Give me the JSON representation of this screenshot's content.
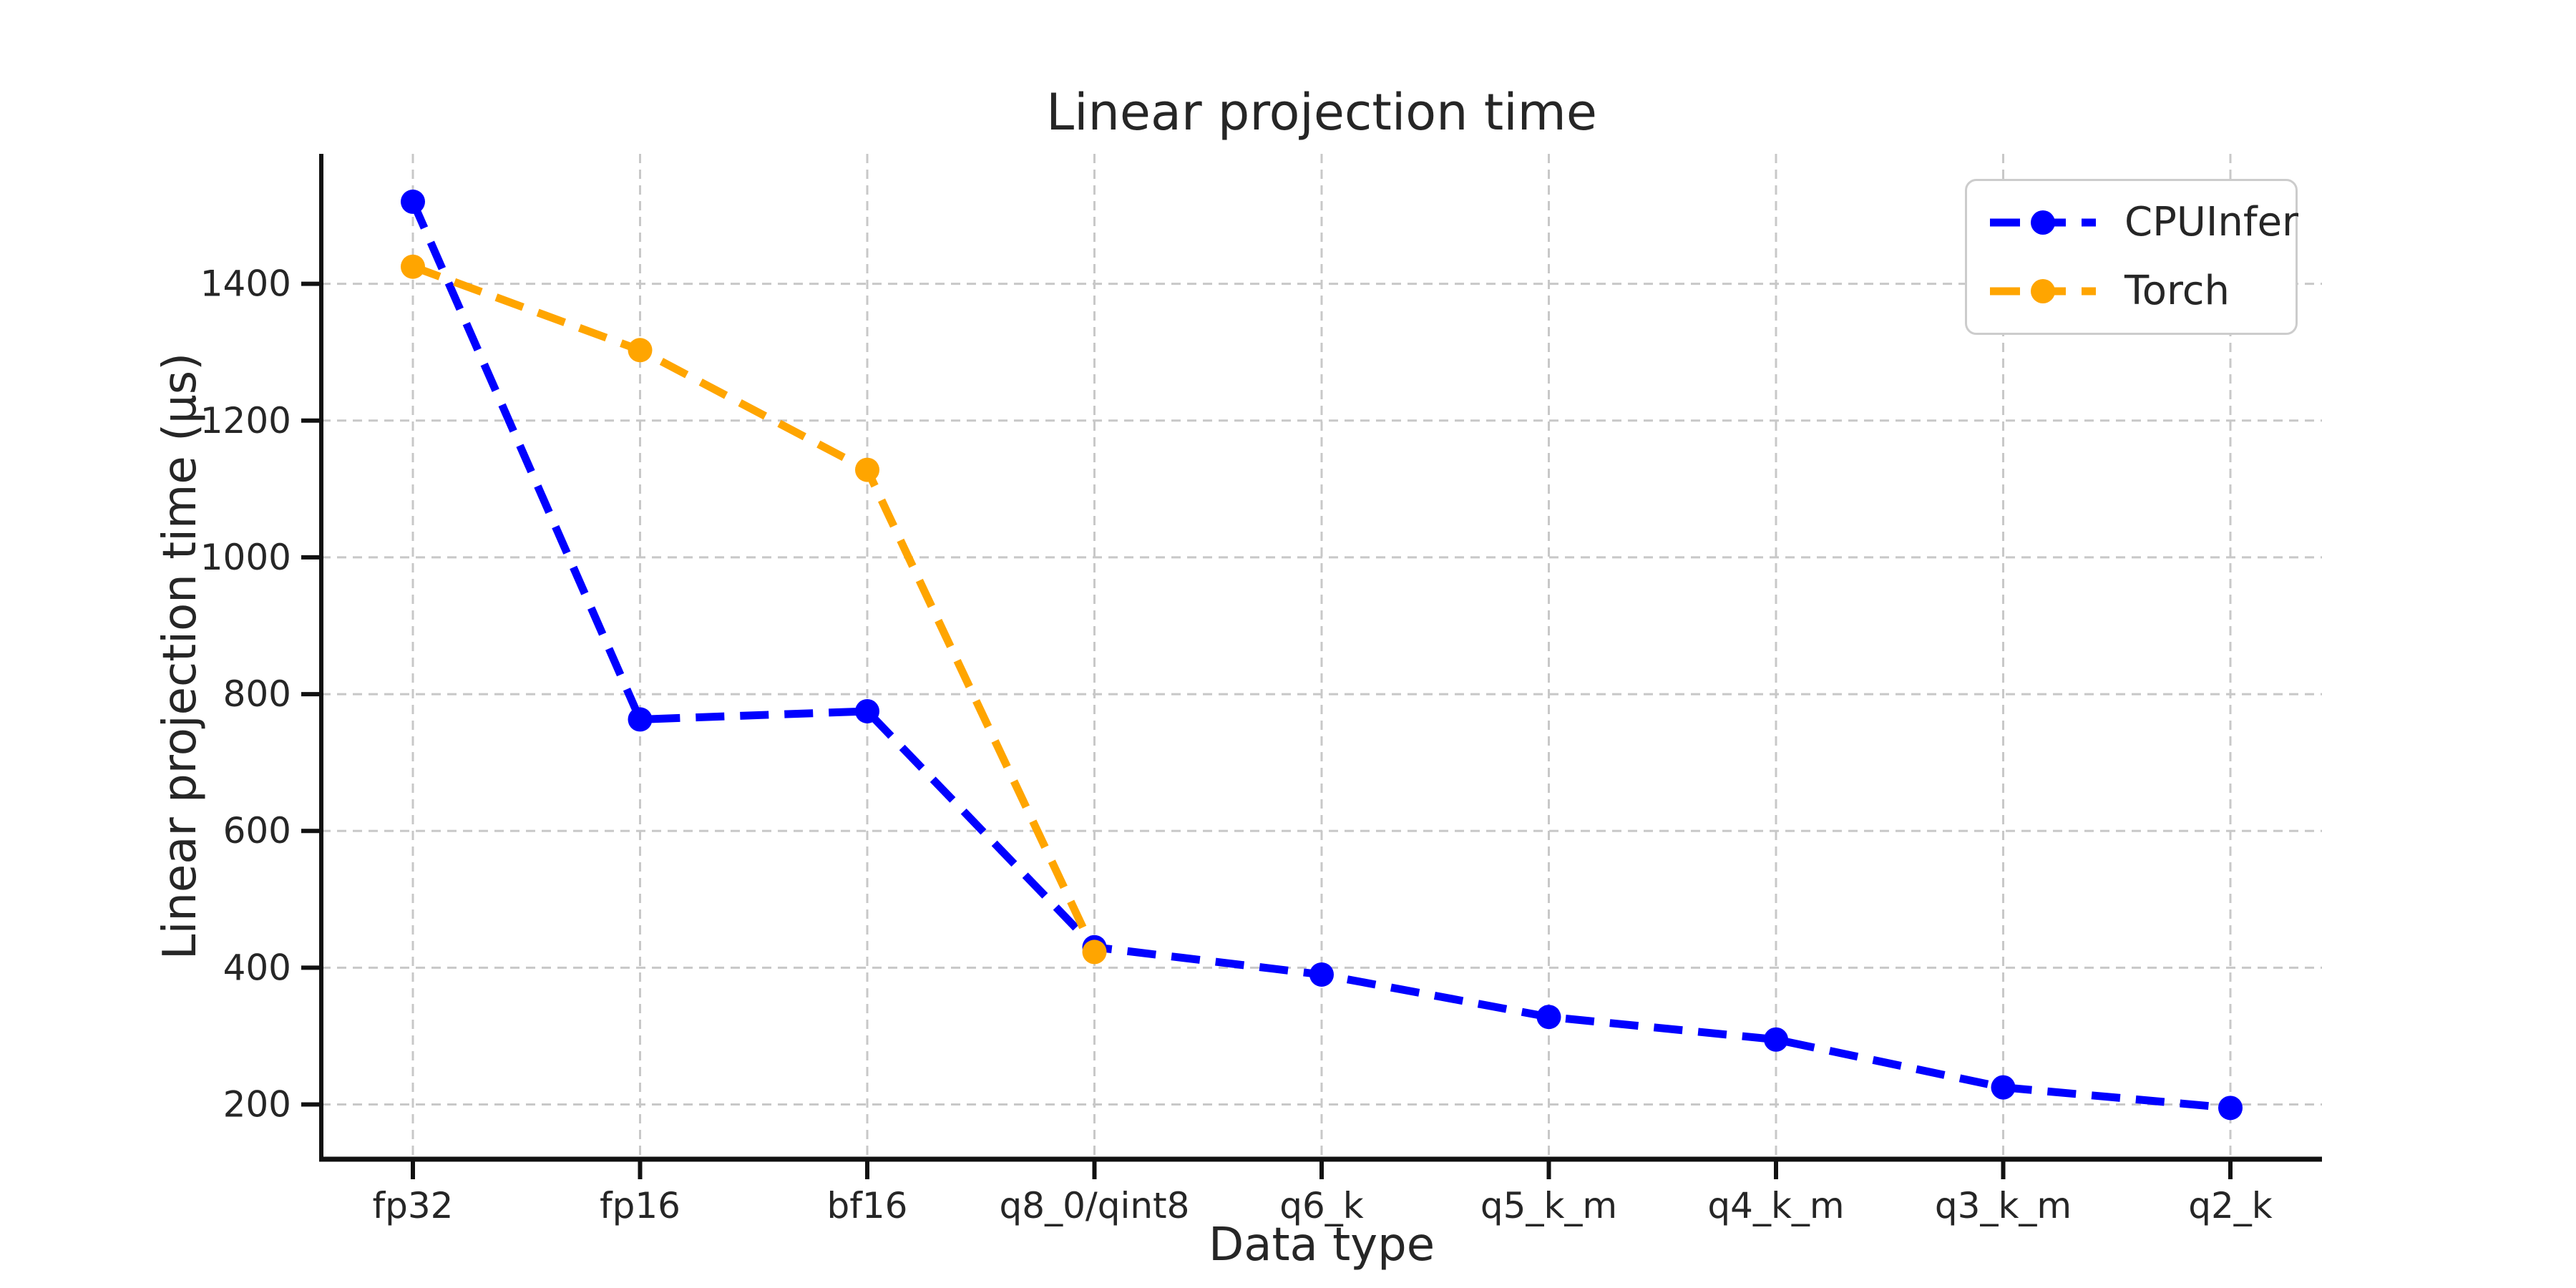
{
  "chart_data": {
    "type": "line",
    "title": "Linear projection time",
    "xlabel": "Data type",
    "ylabel": "Linear projection time (μs)",
    "categories": [
      "fp32",
      "fp16",
      "bf16",
      "q8_0/qint8",
      "q6_k",
      "q5_k_m",
      "q4_k_m",
      "q3_k_m",
      "q2_k"
    ],
    "series": [
      {
        "name": "CPUInfer",
        "color": "#0000ff",
        "values": [
          1520,
          763,
          775,
          430,
          390,
          328,
          295,
          225,
          195
        ]
      },
      {
        "name": "Torch",
        "color": "#ffa500",
        "values": [
          1425,
          1303,
          1128,
          423
        ]
      }
    ],
    "yticks": [
      200,
      400,
      600,
      800,
      1000,
      1200,
      1400
    ],
    "ylim": [
      120,
      1590
    ],
    "grid": true,
    "grid_style": "dashed",
    "line_style": "dashed",
    "marker": "circle",
    "legend_position": "upper right"
  },
  "colors": {
    "background": "#ffffff",
    "grid": "#c8c8c8",
    "axis": "#111111",
    "text": "#262626",
    "legend_border": "#cccccc"
  }
}
